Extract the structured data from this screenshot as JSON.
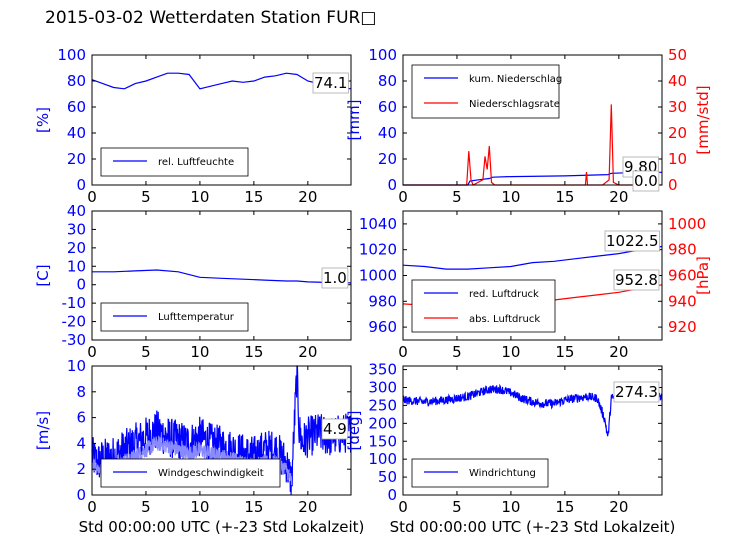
{
  "title": "2015-03-02 Wetterdaten Station FUR□",
  "colors": {
    "primary": "#0000ff",
    "secondary": "#ff0000",
    "axis": "#000000"
  },
  "chart_data": [
    {
      "type": "line",
      "xlim": [
        0,
        24
      ],
      "ylim": [
        0,
        100
      ],
      "xticks": [
        0,
        5,
        10,
        15,
        20
      ],
      "yticks": [
        0,
        20,
        40,
        60,
        80,
        100
      ],
      "ylabel": "[%]",
      "series": [
        {
          "name": "rel. Luftfeuchte",
          "color": "#0000ff",
          "x": [
            0,
            1,
            2,
            3,
            4,
            5,
            6,
            7,
            8,
            9,
            10,
            11,
            12,
            13,
            14,
            15,
            16,
            17,
            18,
            19,
            20,
            21,
            22,
            23,
            24
          ],
          "y": [
            81,
            78,
            75,
            74,
            78,
            80,
            83,
            86,
            86,
            85,
            74,
            76,
            78,
            80,
            79,
            80,
            83,
            84,
            86,
            85,
            80,
            78,
            77,
            75,
            74
          ]
        }
      ],
      "annotations": [
        "74.1"
      ],
      "legend": "bottom-left"
    },
    {
      "type": "line",
      "xlim": [
        0,
        24
      ],
      "ylim": [
        0,
        100
      ],
      "ylim2": [
        0,
        50
      ],
      "xticks": [
        0,
        5,
        10,
        15,
        20
      ],
      "yticks": [
        0,
        20,
        40,
        60,
        80,
        100
      ],
      "yticks2": [
        0,
        10,
        20,
        30,
        40,
        50
      ],
      "ylabel": "[mm]",
      "ylabel2": "[mm/std]",
      "series": [
        {
          "name": "kum. Niederschlag",
          "color": "#0000ff",
          "axis": "left",
          "x": [
            0,
            6,
            6.2,
            7,
            8,
            8.3,
            10,
            15,
            19,
            19.3,
            22,
            24
          ],
          "y": [
            0,
            0,
            3,
            4,
            5,
            6,
            6.5,
            7,
            8,
            9,
            9.8,
            9.8
          ]
        },
        {
          "name": "Niederschlagsrate",
          "color": "#ff0000",
          "axis": "right",
          "x": [
            0,
            5.9,
            6.1,
            6.3,
            6.5,
            7.4,
            7.6,
            7.8,
            8.0,
            8.2,
            8.5,
            10,
            16.9,
            17.0,
            17.1,
            18.5,
            19.1,
            19.3,
            19.5,
            20,
            24
          ],
          "y": [
            0,
            0,
            13,
            2,
            0,
            2,
            11,
            6,
            15,
            1,
            0,
            0,
            0,
            5,
            0,
            0,
            2,
            31,
            1,
            0,
            0
          ]
        }
      ],
      "annotations": [
        "9.80",
        "0.0"
      ],
      "legend": "top-left"
    },
    {
      "type": "line",
      "xlim": [
        0,
        24
      ],
      "ylim": [
        -30,
        40
      ],
      "xticks": [
        0,
        5,
        10,
        15,
        20
      ],
      "yticks": [
        -30,
        -20,
        -10,
        0,
        10,
        20,
        30,
        40
      ],
      "ylabel": "[C]",
      "series": [
        {
          "name": "Lufttemperatur",
          "color": "#0000ff",
          "x": [
            0,
            2,
            4,
            6,
            8,
            9,
            10,
            12,
            14,
            16,
            18,
            19,
            20,
            22,
            24
          ],
          "y": [
            7,
            7,
            7.5,
            8,
            7,
            5.5,
            4,
            3.5,
            3,
            2.5,
            2,
            2,
            1.5,
            1.2,
            1
          ]
        }
      ],
      "annotations": [
        "1.0"
      ],
      "legend": "bottom-left"
    },
    {
      "type": "line",
      "xlim": [
        0,
        24
      ],
      "ylim": [
        950,
        1050
      ],
      "ylim2": [
        910,
        1010
      ],
      "xticks": [
        0,
        5,
        10,
        15,
        20
      ],
      "yticks": [
        960,
        980,
        1000,
        1020,
        1040
      ],
      "yticks2": [
        920,
        940,
        960,
        980,
        1000
      ],
      "ylabel2": "[hPa]",
      "series": [
        {
          "name": "red. Luftdruck",
          "color": "#0000ff",
          "axis": "left",
          "x": [
            0,
            2,
            4,
            6,
            8,
            10,
            12,
            14,
            16,
            18,
            20,
            22,
            24
          ],
          "y": [
            1008,
            1007,
            1005,
            1005,
            1006,
            1007,
            1010,
            1011,
            1013,
            1015,
            1017,
            1020,
            1022.5
          ]
        },
        {
          "name": "abs. Luftdruck",
          "color": "#ff0000",
          "axis": "right",
          "x": [
            0,
            2,
            4,
            6,
            8,
            10,
            12,
            14,
            16,
            18,
            20,
            22,
            24
          ],
          "y": [
            938,
            937,
            936,
            936,
            937,
            938,
            940,
            941,
            943,
            945,
            947,
            950,
            952.8
          ]
        }
      ],
      "annotations": [
        "1022.5",
        "952.8"
      ],
      "legend": "bottom-left"
    },
    {
      "type": "line",
      "xlim": [
        0,
        24
      ],
      "ylim": [
        0,
        10
      ],
      "xticks": [
        0,
        5,
        10,
        15,
        20
      ],
      "yticks": [
        0,
        2,
        4,
        6,
        8,
        10
      ],
      "ylabel": "[m/s]",
      "xlabel": "Std 00:00:00 UTC (+-23 Std Lokalzeit)",
      "series": [
        {
          "name": "Windgeschwindigkeit",
          "color": "#0000ff",
          "x": [
            0,
            0.5,
            1,
            2,
            3,
            4,
            5,
            6,
            7,
            8,
            9,
            10,
            11,
            12,
            13,
            14,
            15,
            16,
            17,
            18,
            18.5,
            19,
            19.2,
            19.5,
            20,
            21,
            22,
            23,
            24
          ],
          "y": [
            3,
            2.5,
            2.8,
            3,
            3.5,
            4,
            4.5,
            5,
            4.5,
            4.2,
            4,
            4.5,
            4,
            3.8,
            3.5,
            3.2,
            3,
            3.5,
            3.5,
            2.5,
            1,
            9.8,
            5,
            4,
            4.5,
            4.8,
            4.5,
            4.7,
            4.9
          ],
          "noise": 1.6
        },
        {
          "name": "",
          "color": "#8a8aff",
          "x": [
            0,
            1,
            2,
            3,
            4,
            5,
            6,
            7,
            8,
            9,
            10,
            11,
            12,
            13,
            14,
            15,
            16,
            17,
            18,
            18.5
          ],
          "y": [
            2.5,
            1.8,
            2.2,
            2.5,
            3,
            3.5,
            4,
            3.8,
            3.5,
            3.2,
            3.5,
            3.2,
            3,
            2.8,
            2.5,
            2.3,
            2.5,
            2.5,
            2,
            1
          ],
          "noise": 0.6
        }
      ],
      "annotations": [
        "4.9"
      ],
      "legend": "bottom-left"
    },
    {
      "type": "line",
      "xlim": [
        0,
        24
      ],
      "ylim": [
        0,
        360
      ],
      "xticks": [
        0,
        5,
        10,
        15,
        20
      ],
      "yticks": [
        0,
        50,
        100,
        150,
        200,
        250,
        300,
        350
      ],
      "ylabel": "[deg]",
      "xlabel": "Std 00:00:00 UTC (+-23 Std Lokalzeit)",
      "series": [
        {
          "name": "Windrichtung",
          "color": "#0000ff",
          "x": [
            0,
            2,
            4,
            6,
            8,
            9,
            10,
            11,
            12,
            13,
            14,
            15,
            16,
            17,
            18,
            18.7,
            19,
            19.3,
            20,
            22,
            24
          ],
          "y": [
            265,
            260,
            265,
            275,
            295,
            295,
            285,
            270,
            260,
            255,
            255,
            265,
            270,
            275,
            270,
            210,
            160,
            270,
            275,
            275,
            274
          ],
          "noise": 12
        }
      ],
      "annotations": [
        "274.3"
      ],
      "legend": "bottom-left"
    }
  ]
}
